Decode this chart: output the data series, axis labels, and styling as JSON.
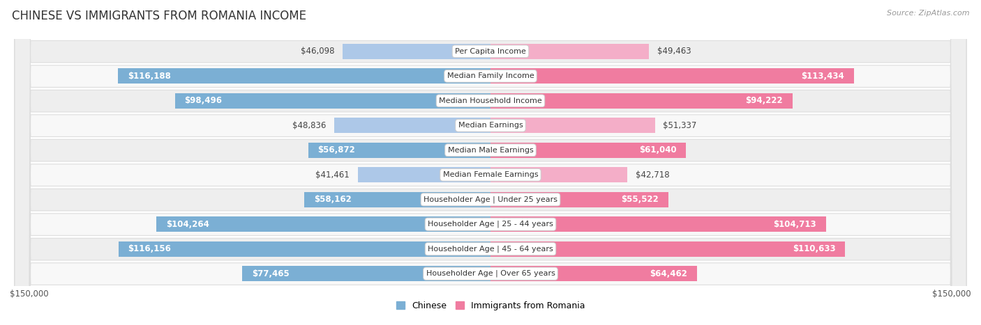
{
  "title": "CHINESE VS IMMIGRANTS FROM ROMANIA INCOME",
  "source": "Source: ZipAtlas.com",
  "categories": [
    "Per Capita Income",
    "Median Family Income",
    "Median Household Income",
    "Median Earnings",
    "Median Male Earnings",
    "Median Female Earnings",
    "Householder Age | Under 25 years",
    "Householder Age | 25 - 44 years",
    "Householder Age | 45 - 64 years",
    "Householder Age | Over 65 years"
  ],
  "chinese_values": [
    46098,
    116188,
    98496,
    48836,
    56872,
    41461,
    58162,
    104264,
    116156,
    77465
  ],
  "romania_values": [
    49463,
    113434,
    94222,
    51337,
    61040,
    42718,
    55522,
    104713,
    110633,
    64462
  ],
  "chinese_labels": [
    "$46,098",
    "$116,188",
    "$98,496",
    "$48,836",
    "$56,872",
    "$41,461",
    "$58,162",
    "$104,264",
    "$116,156",
    "$77,465"
  ],
  "romania_labels": [
    "$49,463",
    "$113,434",
    "$94,222",
    "$51,337",
    "$61,040",
    "$42,718",
    "$55,522",
    "$104,713",
    "$110,633",
    "$64,462"
  ],
  "max_value": 150000,
  "chinese_color": "#7bafd4",
  "romania_color": "#f07ca0",
  "chinese_color_light": "#adc8e8",
  "romania_color_light": "#f4aec8",
  "white": "#ffffff",
  "label_color_outside": "#444444",
  "label_color_inside": "#ffffff",
  "bg_color": "#ffffff",
  "row_bg_even": "#eeeeee",
  "row_bg_odd": "#f8f8f8",
  "row_border": "#dddddd",
  "legend_chinese": "Chinese",
  "legend_romania": "Immigrants from Romania",
  "inside_threshold": 55000,
  "font_size_labels": 8.5,
  "font_size_category": 8.0,
  "font_size_title": 12,
  "font_size_source": 8,
  "font_size_axis": 8.5
}
